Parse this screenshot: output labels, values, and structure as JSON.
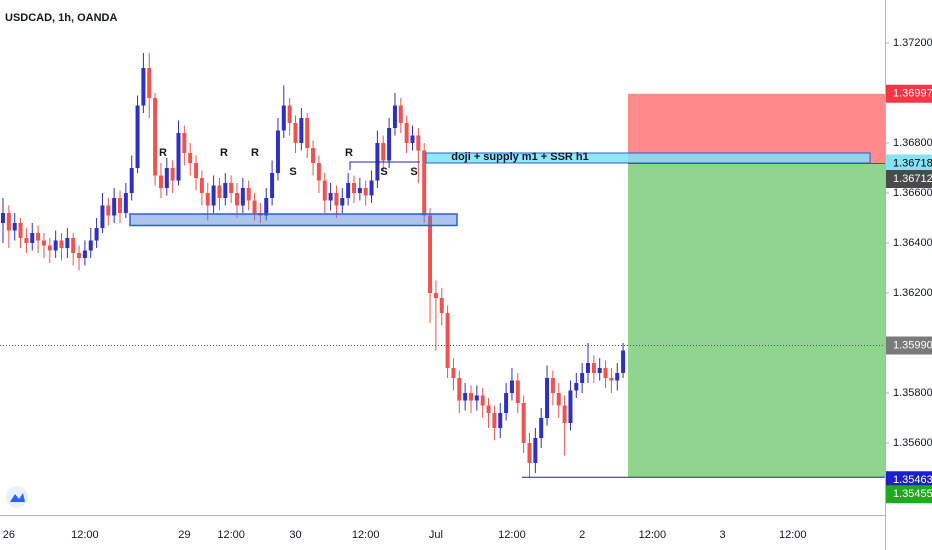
{
  "chart_data": {
    "type": "candlestick",
    "title": "USDCAD, 1h, OANDA",
    "up_color": "#2f2fc0",
    "down_color": "#ef5350",
    "ylim": [
      1.35312,
      1.37372
    ],
    "yticks": [
      {
        "value": 1.372,
        "label": "1.37200"
      },
      {
        "value": 1.368,
        "label": "1.36800"
      },
      {
        "value": 1.366,
        "label": "1.36600"
      },
      {
        "value": 1.364,
        "label": "1.36400"
      },
      {
        "value": 1.362,
        "label": "1.36200"
      },
      {
        "value": 1.358,
        "label": "1.35800"
      },
      {
        "value": 1.356,
        "label": "1.35600"
      }
    ],
    "categories": [
      null,
      "26",
      null,
      null,
      null,
      null,
      null,
      null,
      null,
      null,
      null,
      null,
      null,
      null,
      "12:00",
      null,
      null,
      null,
      null,
      null,
      null,
      null,
      null,
      null,
      null,
      null,
      null,
      null,
      null,
      null,
      null,
      "29",
      null,
      null,
      null,
      null,
      null,
      null,
      null,
      "12:00",
      null,
      null,
      null,
      null,
      null,
      null,
      null,
      null,
      null,
      null,
      "30",
      null,
      null,
      null,
      null,
      null,
      null,
      null,
      null,
      null,
      null,
      null,
      "12:00",
      null,
      null,
      null,
      null,
      null,
      null,
      null,
      null,
      null,
      null,
      null,
      "Jul",
      null,
      null,
      null,
      null,
      null,
      null,
      null,
      null,
      null,
      null,
      null,
      null,
      "12:00",
      null,
      null,
      null,
      null,
      null,
      null,
      null,
      null,
      null,
      null,
      null,
      "2",
      null,
      null,
      null,
      null,
      null,
      null,
      null,
      null,
      null,
      null,
      null,
      "12:00",
      null,
      null,
      null,
      null,
      null,
      null,
      null,
      null,
      null,
      null,
      null,
      "3",
      null,
      null,
      null,
      null,
      null,
      null,
      null,
      null,
      null,
      null,
      null,
      "12:00",
      null,
      null,
      null,
      null,
      null,
      null,
      null,
      null,
      null,
      null,
      null,
      null,
      null,
      null,
      null
    ],
    "open": [
      1.3648,
      1.3652,
      1.3645,
      1.3648,
      1.3642,
      1.364,
      1.3644,
      1.3641,
      1.3639,
      1.3637,
      1.3641,
      1.3638,
      1.3642,
      1.3636,
      1.3634,
      1.3637,
      1.3641,
      1.3646,
      1.3655,
      1.3651,
      1.3658,
      1.3652,
      1.366,
      1.367,
      1.3695,
      1.371,
      1.3698,
      1.3667,
      1.3662,
      1.367,
      1.3665,
      1.3684,
      1.3676,
      1.3672,
      1.3666,
      1.366,
      1.3655,
      1.3663,
      1.3658,
      1.3664,
      1.366,
      1.3655,
      1.3662,
      1.3657,
      1.3652,
      1.3651,
      1.3658,
      1.3668,
      1.3685,
      1.3695,
      1.3688,
      1.368,
      1.369,
      1.3678,
      1.3672,
      1.3665,
      1.3657,
      1.366,
      1.3655,
      1.3658,
      1.3664,
      1.366,
      1.3662,
      1.3659,
      1.3665,
      1.368,
      1.3673,
      1.3686,
      1.3695,
      1.3688,
      1.368,
      1.3683,
      1.3677,
      1.3651,
      1.362,
      1.3618,
      1.3612,
      1.359,
      1.3586,
      1.3577,
      1.358,
      1.3577,
      1.3579,
      1.3575,
      1.3572,
      1.3566,
      1.3572,
      1.358,
      1.3585,
      1.3576,
      1.356,
      1.3552,
      1.3562,
      1.357,
      1.3586,
      1.358,
      1.3575,
      1.3568,
      1.3581,
      1.3584,
      1.3588,
      1.3592,
      1.3588,
      1.359,
      1.3586,
      1.3585,
      1.3588,
      null,
      null,
      null,
      null,
      null,
      null,
      null,
      null,
      null,
      null,
      null,
      null,
      null,
      null,
      null,
      null,
      null,
      null,
      null,
      null,
      null,
      null,
      null,
      null,
      null,
      null,
      null,
      null,
      null,
      null,
      null,
      null,
      null,
      null,
      null,
      null,
      null,
      null,
      null,
      null,
      null,
      null,
      null,
      null
    ],
    "high": [
      1.3658,
      1.3655,
      1.3652,
      1.365,
      1.3646,
      1.3648,
      1.3647,
      1.3644,
      1.3642,
      1.3645,
      1.3644,
      1.3646,
      1.3644,
      1.3639,
      1.3641,
      1.3646,
      1.365,
      1.366,
      1.3658,
      1.3662,
      1.3661,
      1.3664,
      1.3675,
      1.3699,
      1.3716,
      1.3716,
      1.37,
      1.3672,
      1.3674,
      1.3673,
      1.3689,
      1.3687,
      1.368,
      1.3675,
      1.3669,
      1.3664,
      1.3667,
      1.3666,
      1.3668,
      1.3667,
      1.3664,
      1.3666,
      1.3665,
      1.366,
      1.3656,
      1.3662,
      1.3673,
      1.369,
      1.3703,
      1.3698,
      1.3691,
      1.3694,
      1.3692,
      1.3681,
      1.3675,
      1.3668,
      1.3664,
      1.3663,
      1.3662,
      1.3668,
      1.3667,
      1.3666,
      1.3665,
      1.3669,
      1.3685,
      1.3683,
      1.369,
      1.37,
      1.3698,
      1.3691,
      1.3687,
      1.3686,
      1.368,
      1.3654,
      1.3625,
      1.3622,
      1.3615,
      1.3594,
      1.3589,
      1.3584,
      1.3583,
      1.3583,
      1.3582,
      1.3578,
      1.3575,
      1.3576,
      1.3584,
      1.359,
      1.3588,
      1.3579,
      1.3564,
      1.3566,
      1.3574,
      1.3591,
      1.3589,
      1.3584,
      1.3579,
      1.3585,
      1.3588,
      1.3592,
      1.36,
      1.3595,
      1.3594,
      1.3593,
      1.359,
      1.3592,
      1.36,
      null,
      null,
      null,
      null,
      null,
      null,
      null,
      null,
      null,
      null,
      null,
      null,
      null,
      null,
      null,
      null,
      null,
      null,
      null,
      null,
      null,
      null,
      null,
      null,
      null,
      null,
      null,
      null,
      null,
      null,
      null,
      null,
      null,
      null,
      null,
      null,
      null,
      null,
      null,
      null,
      null,
      null,
      null,
      null
    ],
    "low": [
      1.364,
      1.3638,
      1.3641,
      1.3638,
      1.3636,
      1.3637,
      1.3636,
      1.3634,
      1.3632,
      1.3634,
      1.3633,
      1.3634,
      1.3631,
      1.3629,
      1.3631,
      1.3634,
      1.3638,
      1.3644,
      1.3647,
      1.3648,
      1.3648,
      1.365,
      1.3657,
      1.3668,
      1.3692,
      1.369,
      1.3663,
      1.3658,
      1.3659,
      1.366,
      1.3663,
      1.3671,
      1.3667,
      1.3661,
      1.3655,
      1.3649,
      1.3652,
      1.3653,
      1.3655,
      1.3656,
      1.365,
      1.3652,
      1.3653,
      1.3649,
      1.3648,
      1.3649,
      1.3655,
      1.3665,
      1.3682,
      1.3683,
      1.3676,
      1.3677,
      1.3674,
      1.3667,
      1.366,
      1.3652,
      1.3653,
      1.365,
      1.3652,
      1.3655,
      1.3656,
      1.3657,
      1.3655,
      1.3656,
      1.3662,
      1.3669,
      1.367,
      1.3683,
      1.3684,
      1.3676,
      1.3677,
      1.3664,
      1.3648,
      1.3608,
      1.3597,
      1.3607,
      1.3586,
      1.3581,
      1.3572,
      1.3573,
      1.3572,
      1.3573,
      1.357,
      1.3566,
      1.3561,
      1.3562,
      1.3569,
      1.3577,
      1.3572,
      1.3556,
      1.3546,
      1.3548,
      1.3558,
      1.3567,
      1.3575,
      1.357,
      1.3555,
      1.3565,
      1.3578,
      1.358,
      1.3584,
      1.3584,
      1.3585,
      1.3582,
      1.358,
      1.3581,
      1.3586,
      null,
      null,
      null,
      null,
      null,
      null,
      null,
      null,
      null,
      null,
      null,
      null,
      null,
      null,
      null,
      null,
      null,
      null,
      null,
      null,
      null,
      null,
      null,
      null,
      null,
      null,
      null,
      null,
      null,
      null,
      null,
      null,
      null,
      null,
      null,
      null,
      null,
      null,
      null,
      null,
      null,
      null,
      null,
      null
    ],
    "close": [
      1.3652,
      1.3645,
      1.3648,
      1.3642,
      1.364,
      1.3644,
      1.3641,
      1.3639,
      1.3637,
      1.3641,
      1.3638,
      1.3642,
      1.3636,
      1.3634,
      1.3637,
      1.3641,
      1.3646,
      1.3655,
      1.3651,
      1.3658,
      1.3652,
      1.366,
      1.367,
      1.3695,
      1.371,
      1.3698,
      1.3667,
      1.3662,
      1.367,
      1.3665,
      1.3684,
      1.3676,
      1.3672,
      1.3666,
      1.366,
      1.3655,
      1.3663,
      1.3658,
      1.3664,
      1.366,
      1.3655,
      1.3662,
      1.3657,
      1.3652,
      1.3651,
      1.3658,
      1.3668,
      1.3685,
      1.3695,
      1.3688,
      1.368,
      1.369,
      1.3678,
      1.3672,
      1.3665,
      1.3657,
      1.366,
      1.3655,
      1.3658,
      1.3664,
      1.366,
      1.3662,
      1.3659,
      1.3665,
      1.368,
      1.3673,
      1.3686,
      1.3695,
      1.3688,
      1.368,
      1.3683,
      1.3677,
      1.3651,
      1.362,
      1.3618,
      1.3612,
      1.359,
      1.3586,
      1.3577,
      1.358,
      1.3577,
      1.3579,
      1.3575,
      1.3572,
      1.3566,
      1.3572,
      1.358,
      1.3585,
      1.3576,
      1.356,
      1.3552,
      1.3562,
      1.357,
      1.3586,
      1.358,
      1.3575,
      1.3568,
      1.3581,
      1.3584,
      1.3588,
      1.3592,
      1.3588,
      1.359,
      1.3586,
      1.3585,
      1.3588,
      1.3597,
      null,
      null,
      null,
      null,
      null,
      null,
      null,
      null,
      null,
      null,
      null,
      null,
      null,
      null,
      null,
      null,
      null,
      null,
      null,
      null,
      null,
      null,
      null,
      null,
      null,
      null,
      null,
      null,
      null,
      null,
      null,
      null,
      null,
      null,
      null,
      null,
      null,
      null,
      null,
      null,
      null,
      null,
      null,
      null
    ],
    "price_labels": [
      {
        "value": 1.36997,
        "label": "1.36997",
        "color": "#f23645",
        "text_color": "#ffffff"
      },
      {
        "value": 1.36718,
        "label": "1.36718",
        "color": "#86e3f5",
        "text_color": "#000000"
      },
      {
        "value": 1.36712,
        "label": "1.36712",
        "color": "#4a4a4a",
        "text_color": "#ffffff"
      },
      {
        "value": 1.3599,
        "label": "1.35990",
        "color": "#7a7a7a",
        "text_color": "#ffffff"
      },
      {
        "value": 1.35463,
        "label": "1.35463",
        "color": "#1f1fc8",
        "text_color": "#ffffff"
      },
      {
        "value": 1.35455,
        "label": "1.35455",
        "color": "#1eaa1e",
        "text_color": "#ffffff"
      }
    ],
    "zones": [
      {
        "low": 1.3647,
        "high": 1.36516,
        "color": "#4a7fd8"
      },
      {
        "low": 1.3672,
        "high": 1.3676,
        "color": "#7fe3f5"
      }
    ],
    "annotations": [
      "R",
      "R",
      "R",
      "S",
      "R",
      "S",
      "S",
      "doji + supply m1 + SSR h1"
    ]
  }
}
